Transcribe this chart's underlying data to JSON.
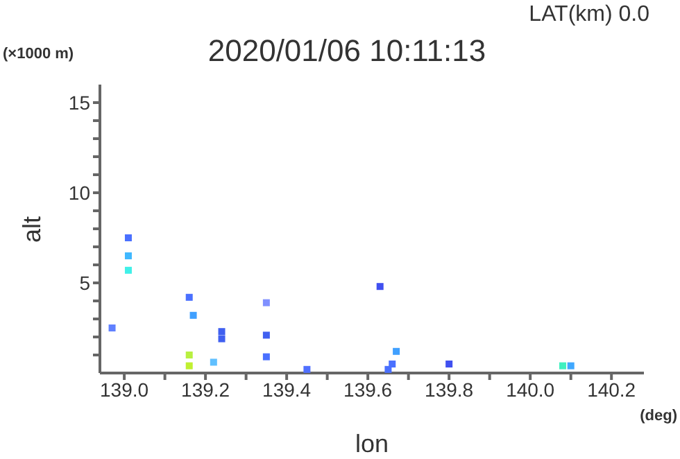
{
  "chart_data": {
    "type": "scatter",
    "title": "2020/01/06 10:11:13",
    "xlabel": "lon",
    "ylabel": "alt",
    "annotations": [
      "LAT(km) 0.0",
      "(×1000 m)",
      "(deg)"
    ],
    "x": [
      139.01,
      139.01,
      139.01,
      138.97,
      139.16,
      139.17,
      139.16,
      139.16,
      139.22,
      139.24,
      139.24,
      139.35,
      139.35,
      139.35,
      139.45,
      139.63,
      139.65,
      139.67,
      139.66,
      139.8,
      140.08,
      140.1
    ],
    "values": [
      7.5,
      6.5,
      5.7,
      2.5,
      4.2,
      3.2,
      1.0,
      0.4,
      0.6,
      2.3,
      1.9,
      3.9,
      2.1,
      0.9,
      0.2,
      4.8,
      0.2,
      1.2,
      0.5,
      0.5,
      0.4,
      0.4
    ],
    "colors": [
      "#4a70ff",
      "#40b8ff",
      "#40f0e8",
      "#6080ff",
      "#4a70ff",
      "#40a0ff",
      "#b8f040",
      "#c0f030",
      "#60c0ff",
      "#4060f0",
      "#4060f0",
      "#8090ff",
      "#4060f0",
      "#4a70ff",
      "#5070ff",
      "#4050f0",
      "#4a70ff",
      "#40a0ff",
      "#4a70ff",
      "#4050f0",
      "#40f0c0",
      "#40a8ff"
    ],
    "marker": "square",
    "xlim": [
      138.94,
      140.28
    ],
    "xticks": [
      {
        "value": 139.0,
        "label": "139.0"
      },
      {
        "value": 139.1,
        "label": null
      },
      139.2,
      {
        "value": 139.3,
        "label": null
      },
      139.4,
      {
        "value": 139.5,
        "label": null
      },
      139.6,
      {
        "value": 139.7,
        "label": null
      },
      139.8,
      {
        "value": 139.9,
        "label": null
      },
      {
        "value": 140.0,
        "label": "140.0"
      },
      {
        "value": 140.1,
        "label": null
      },
      140.2
    ],
    "ylim": [
      0,
      16
    ],
    "yticks": [
      {
        "value": 1,
        "label": null
      },
      {
        "value": 2,
        "label": null
      },
      {
        "value": 3,
        "label": null
      },
      {
        "value": 4,
        "label": null
      },
      5,
      {
        "value": 6,
        "label": null
      },
      {
        "value": 7,
        "label": null
      },
      {
        "value": 8,
        "label": null
      },
      {
        "value": 9,
        "label": null
      },
      10,
      {
        "value": 11,
        "label": null
      },
      {
        "value": 12,
        "label": null
      },
      {
        "value": 13,
        "label": null
      },
      {
        "value": 14,
        "label": null
      },
      15
    ],
    "grid": false,
    "legend": false
  }
}
